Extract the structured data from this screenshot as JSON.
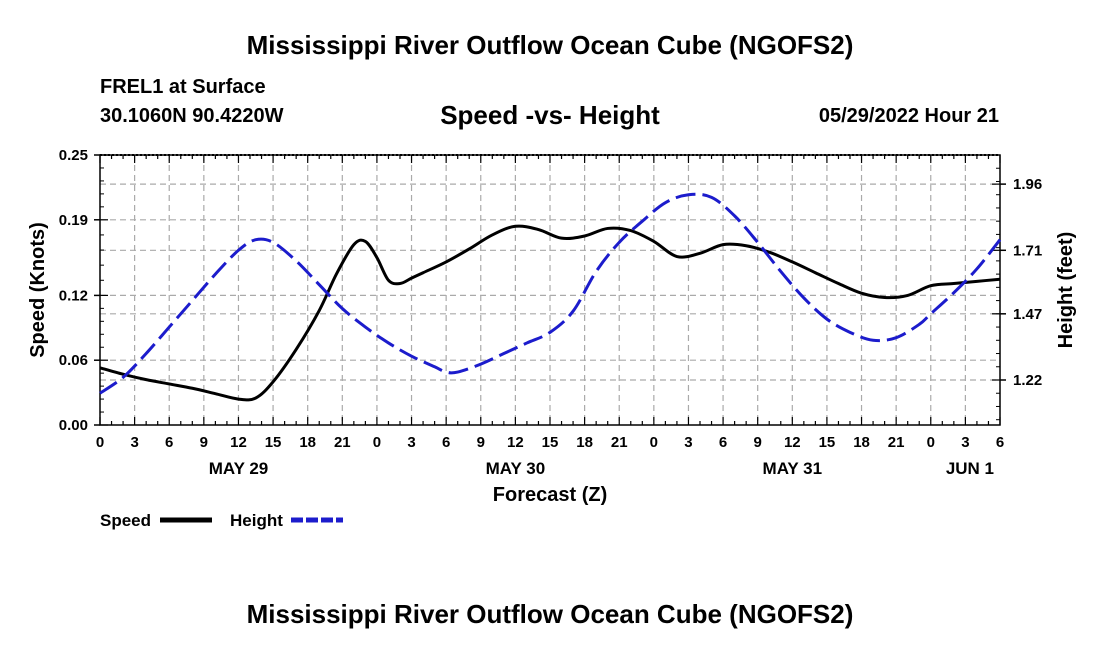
{
  "page": {
    "main_title": "Mississippi River Outflow Ocean Cube (NGOFS2)",
    "main_title_repeat": "Mississippi River Outflow Ocean Cube (NGOFS2)",
    "station": "FREL1 at Surface",
    "coords": "30.1060N  90.4220W",
    "subtitle": "Speed -vs- Height",
    "datetime": "05/29/2022 Hour 21"
  },
  "legend": {
    "speed_label": "Speed",
    "height_label": "Height"
  },
  "colors": {
    "speed": "#000000",
    "height": "#1c1ccc",
    "grid": "#aaaaaa"
  },
  "chart_data": {
    "type": "line",
    "title": "Speed -vs- Height",
    "xlabel": "Forecast (Z)",
    "ylabel": "Speed (Knots)",
    "y2label": "Height (feet)",
    "xlim": [
      0,
      78
    ],
    "ylim": [
      0,
      0.25
    ],
    "y2lim": [
      1.05,
      2.07
    ],
    "yticks": [
      0.0,
      0.06,
      0.12,
      0.19,
      0.25
    ],
    "ytick_labels": [
      "0.00",
      "0.06",
      "0.12",
      "0.19",
      "0.25"
    ],
    "y2ticks": [
      1.22,
      1.47,
      1.71,
      1.96
    ],
    "y2tick_labels": [
      "1.22",
      "1.47",
      "1.71",
      "1.96"
    ],
    "xticks": [
      0,
      3,
      6,
      9,
      12,
      15,
      18,
      21,
      24,
      27,
      30,
      33,
      36,
      39,
      42,
      45,
      48,
      51,
      54,
      57,
      60,
      63,
      66,
      69,
      72,
      75,
      78
    ],
    "xtick_labels": [
      "0",
      "3",
      "6",
      "9",
      "12",
      "15",
      "18",
      "21",
      "0",
      "3",
      "6",
      "9",
      "12",
      "15",
      "18",
      "21",
      "0",
      "3",
      "6",
      "9",
      "12",
      "15",
      "18",
      "21",
      "0",
      "3",
      "6"
    ],
    "date_labels": [
      {
        "x": 12,
        "text": "MAY 29"
      },
      {
        "x": 36,
        "text": "MAY 30"
      },
      {
        "x": 60,
        "text": "MAY 31"
      },
      {
        "x": 78,
        "text": "JUN 1"
      }
    ],
    "grid": true,
    "series": [
      {
        "name": "Speed",
        "axis": "left",
        "style": "solid",
        "x": [
          0,
          2,
          4,
          6,
          8,
          10,
          12,
          13.5,
          15,
          17,
          19,
          20.5,
          22,
          23,
          24,
          25,
          26,
          27,
          28,
          30,
          32,
          34,
          36,
          38,
          40,
          42,
          44,
          46,
          48,
          50,
          52,
          54,
          56,
          58,
          60,
          62,
          64,
          66,
          68,
          70,
          72,
          74,
          76,
          78
        ],
        "values": [
          0.053,
          0.047,
          0.042,
          0.038,
          0.034,
          0.029,
          0.024,
          0.025,
          0.04,
          0.07,
          0.106,
          0.14,
          0.167,
          0.17,
          0.155,
          0.134,
          0.131,
          0.136,
          0.141,
          0.151,
          0.163,
          0.176,
          0.184,
          0.181,
          0.173,
          0.175,
          0.182,
          0.18,
          0.17,
          0.156,
          0.159,
          0.167,
          0.166,
          0.16,
          0.151,
          0.141,
          0.131,
          0.122,
          0.118,
          0.12,
          0.129,
          0.131,
          0.133,
          0.135
        ]
      },
      {
        "name": "Height",
        "axis": "right",
        "style": "dashed",
        "x": [
          0,
          2,
          4,
          6,
          8,
          10,
          12,
          13.5,
          15,
          17,
          19,
          21,
          23,
          25,
          27,
          29,
          30,
          31,
          33,
          35,
          37,
          39,
          41,
          43,
          45,
          47,
          49,
          51,
          53,
          55,
          57,
          59,
          61,
          63,
          65,
          67,
          69,
          71,
          72,
          74,
          76,
          78
        ],
        "values": [
          1.17,
          1.23,
          1.32,
          1.42,
          1.52,
          1.62,
          1.71,
          1.75,
          1.74,
          1.67,
          1.58,
          1.49,
          1.42,
          1.36,
          1.31,
          1.27,
          1.25,
          1.25,
          1.28,
          1.32,
          1.36,
          1.4,
          1.48,
          1.63,
          1.74,
          1.82,
          1.89,
          1.92,
          1.91,
          1.84,
          1.74,
          1.63,
          1.53,
          1.45,
          1.4,
          1.37,
          1.38,
          1.43,
          1.47,
          1.55,
          1.64,
          1.75
        ]
      }
    ]
  }
}
